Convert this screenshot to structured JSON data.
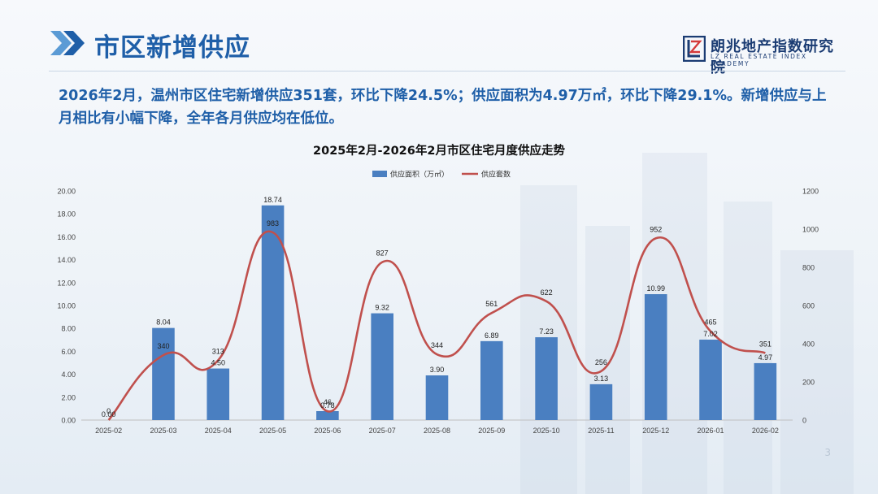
{
  "header": {
    "title": "市区新增供应",
    "logo_text": "朗兆地产指数研究院",
    "logo_sub": "LZ REAL ESTATE INDEX ACADEMY"
  },
  "summary": "2026年2月，温州市区住宅新增供应351套，环比下降24.5%；供应面积为4.97万㎡，环比下降29.1%。新增供应与上月相比有小幅下降，全年各月供应均在低位。",
  "colors": {
    "accent": "#1f5fa8",
    "bar": "#4a7fc1",
    "line": "#c0504d"
  },
  "page_number": "3",
  "chart_data": {
    "type": "bar",
    "title": "2025年2月-2026年2月市区住宅月度供应走势",
    "categories": [
      "2025-02",
      "2025-03",
      "2025-04",
      "2025-05",
      "2025-06",
      "2025-07",
      "2025-08",
      "2025-09",
      "2025-10",
      "2025-11",
      "2025-12",
      "2026-01",
      "2026-02"
    ],
    "series": [
      {
        "name": "供应面积（万㎡）",
        "type": "bar",
        "axis": "left",
        "values": [
          0.0,
          8.04,
          4.5,
          18.74,
          0.78,
          9.32,
          3.9,
          6.89,
          7.23,
          3.13,
          10.99,
          7.02,
          4.97
        ],
        "labels": [
          "0.00",
          "8.04",
          "4.50",
          "18.74",
          "0.78",
          "9.32",
          "3.90",
          "6.89",
          "7.23",
          "3.13",
          "10.99",
          "7.02",
          "4.97"
        ]
      },
      {
        "name": "供应套数",
        "type": "line",
        "axis": "right",
        "smooth": true,
        "values": [
          0,
          340,
          313,
          983,
          46,
          827,
          344,
          561,
          622,
          256,
          952,
          465,
          351
        ],
        "labels": [
          "0",
          "340",
          "313",
          "983",
          "46",
          "827",
          "344",
          "561",
          "622",
          "256",
          "952",
          "465",
          "351"
        ]
      }
    ],
    "y_left": {
      "min": 0,
      "max": 20,
      "step": 2,
      "ticks": [
        "0.00",
        "2.00",
        "4.00",
        "6.00",
        "8.00",
        "10.00",
        "12.00",
        "14.00",
        "16.00",
        "18.00",
        "20.00"
      ]
    },
    "y_right": {
      "min": 0,
      "max": 1200,
      "step": 200,
      "ticks": [
        "0",
        "200",
        "400",
        "600",
        "800",
        "1000",
        "1200"
      ]
    },
    "legend_position": "top-center",
    "grid": false
  }
}
